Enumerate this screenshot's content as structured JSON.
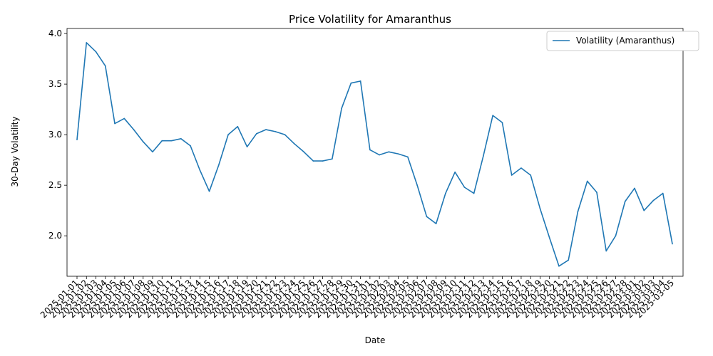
{
  "chart_data": {
    "type": "line",
    "title": "Price Volatility for Amaranthus",
    "xlabel": "Date",
    "ylabel": "30-Day Volatility",
    "ylim": [
      1.6,
      4.05
    ],
    "yticks": [
      "2.0",
      "2.5",
      "3.0",
      "3.5",
      "4.0"
    ],
    "grid": false,
    "legend_position": "top-right",
    "x": [
      "2025-01-01",
      "2025-01-02",
      "2025-01-03",
      "2025-01-04",
      "2025-01-05",
      "2025-01-06",
      "2025-01-07",
      "2025-01-08",
      "2025-01-09",
      "2025-01-10",
      "2025-01-11",
      "2025-01-12",
      "2025-01-13",
      "2025-01-14",
      "2025-01-15",
      "2025-01-16",
      "2025-01-17",
      "2025-01-18",
      "2025-01-19",
      "2025-01-20",
      "2025-01-21",
      "2025-01-22",
      "2025-01-23",
      "2025-01-24",
      "2025-01-25",
      "2025-01-26",
      "2025-01-27",
      "2025-01-28",
      "2025-01-29",
      "2025-01-30",
      "2025-01-31",
      "2025-02-01",
      "2025-02-02",
      "2025-02-03",
      "2025-02-04",
      "2025-02-05",
      "2025-02-06",
      "2025-02-07",
      "2025-02-08",
      "2025-02-09",
      "2025-02-10",
      "2025-02-11",
      "2025-02-12",
      "2025-02-13",
      "2025-02-14",
      "2025-02-15",
      "2025-02-16",
      "2025-02-17",
      "2025-02-18",
      "2025-02-19",
      "2025-02-20",
      "2025-02-21",
      "2025-02-22",
      "2025-02-23",
      "2025-02-24",
      "2025-02-25",
      "2025-02-26",
      "2025-02-27",
      "2025-02-28",
      "2025-03-01",
      "2025-03-02",
      "2025-03-03",
      "2025-03-04",
      "2025-03-05"
    ],
    "series": [
      {
        "name": "Volatility (Amaranthus)",
        "color": "#1f77b4",
        "values": [
          2.95,
          3.91,
          3.82,
          3.68,
          3.11,
          3.16,
          3.05,
          2.93,
          2.83,
          2.94,
          2.94,
          2.96,
          2.89,
          2.65,
          2.44,
          2.7,
          3.0,
          3.08,
          2.88,
          3.01,
          3.05,
          3.03,
          3.0,
          2.91,
          2.83,
          2.74,
          2.74,
          2.76,
          3.26,
          3.51,
          3.53,
          2.85,
          2.8,
          2.83,
          2.81,
          2.78,
          2.5,
          2.19,
          2.12,
          2.42,
          2.63,
          2.48,
          2.42,
          2.79,
          3.19,
          3.12,
          2.6,
          2.67,
          2.6,
          2.27,
          1.98,
          1.7,
          1.76,
          2.24,
          2.54,
          2.43,
          1.85,
          2.0,
          2.34,
          2.47,
          2.25,
          2.35,
          2.42,
          1.92
        ]
      }
    ]
  }
}
